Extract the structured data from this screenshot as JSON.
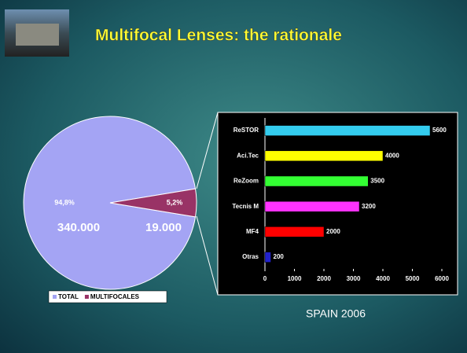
{
  "slide": {
    "title": "Multifocal Lenses: the rationale",
    "caption": "SPAIN 2006"
  },
  "chart_data": [
    {
      "type": "pie",
      "categories": [
        "TOTAL",
        "MULTIFOCALES"
      ],
      "values": [
        94.8,
        5.2
      ],
      "value_labels": [
        "94,8%",
        "5,2%"
      ],
      "counts": [
        340000,
        19000
      ],
      "count_labels": [
        "340.000",
        "19.000"
      ],
      "colors": [
        "#a4a4f4",
        "#993366"
      ],
      "legend": "bottom"
    },
    {
      "type": "hbar",
      "categories": [
        "ReSTOR",
        "Aci.Tec",
        "ReZoom",
        "Tecnis M",
        "MF4",
        "Otras"
      ],
      "values": [
        5600,
        4000,
        3500,
        3200,
        2000,
        200
      ],
      "colors": [
        "#33ccee",
        "#ffff00",
        "#33ff33",
        "#ff33ff",
        "#ff0000",
        "#2222cc"
      ],
      "xlim": [
        0,
        6000
      ],
      "xticks": [
        0,
        1000,
        2000,
        3000,
        4000,
        5000,
        6000
      ]
    }
  ]
}
